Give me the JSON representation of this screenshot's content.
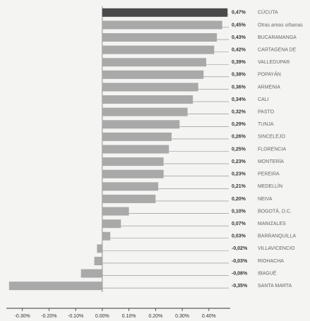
{
  "chart_data": {
    "type": "bar",
    "orientation": "horizontal",
    "categories": [
      "CÚCUTA",
      "Otras areas urbanas",
      "BUCARAMANGA",
      "CARTAGENA DE",
      "VALLEDUPAR",
      "POPAYÁN",
      "ARMENIA",
      "CALI",
      "PASTO",
      "TUNJA",
      "SINCELEJO",
      "FLORENCIA",
      "MONTERÍA",
      "PEREIRA",
      "MEDELLÍN",
      "NEIVA",
      "BOGOTÁ, D.C.",
      "MANIZALES",
      "BARRANQUILLA",
      "VILLAVICENCIO",
      "RIOHACHA",
      "IBAGUÉ",
      "SANTA MARTA"
    ],
    "values": [
      0.47,
      0.45,
      0.43,
      0.42,
      0.39,
      0.38,
      0.36,
      0.34,
      0.32,
      0.29,
      0.26,
      0.25,
      0.23,
      0.23,
      0.21,
      0.2,
      0.1,
      0.07,
      0.03,
      -0.02,
      -0.03,
      -0.08,
      -0.35
    ],
    "value_labels": [
      "0,47%",
      "0,45%",
      "0,43%",
      "0,42%",
      "0,39%",
      "0,38%",
      "0,36%",
      "0,34%",
      "0,32%",
      "0,29%",
      "0,26%",
      "0,25%",
      "0,23%",
      "0,23%",
      "0,21%",
      "0,20%",
      "0,10%",
      "0,07%",
      "0,03%",
      "-0,02%",
      "-0,03%",
      "-0,08%",
      "-0,35%"
    ],
    "colors": [
      "#4a4a4a",
      "#a9a9a9",
      "#a9a9a9",
      "#a9a9a9",
      "#a9a9a9",
      "#a9a9a9",
      "#a9a9a9",
      "#a9a9a9",
      "#a9a9a9",
      "#a9a9a9",
      "#a9a9a9",
      "#a9a9a9",
      "#a9a9a9",
      "#a9a9a9",
      "#a9a9a9",
      "#a9a9a9",
      "#a9a9a9",
      "#a9a9a9",
      "#a9a9a9",
      "#a9a9a9",
      "#a9a9a9",
      "#a9a9a9",
      "#a9a9a9"
    ],
    "xlim": [
      -0.36,
      0.48
    ],
    "xticks": [
      {
        "value": -0.3,
        "label": "-0.30%"
      },
      {
        "value": -0.2,
        "label": "-0.20%"
      },
      {
        "value": -0.1,
        "label": "-0.10%"
      },
      {
        "value": 0,
        "label": "0.00%"
      },
      {
        "value": 0.1,
        "label": "0.10%"
      },
      {
        "value": 0.2,
        "label": "0.20%"
      },
      {
        "value": 0.3,
        "label": "0.30%"
      },
      {
        "value": 0.4,
        "label": "0.40%"
      }
    ],
    "grid": false
  }
}
